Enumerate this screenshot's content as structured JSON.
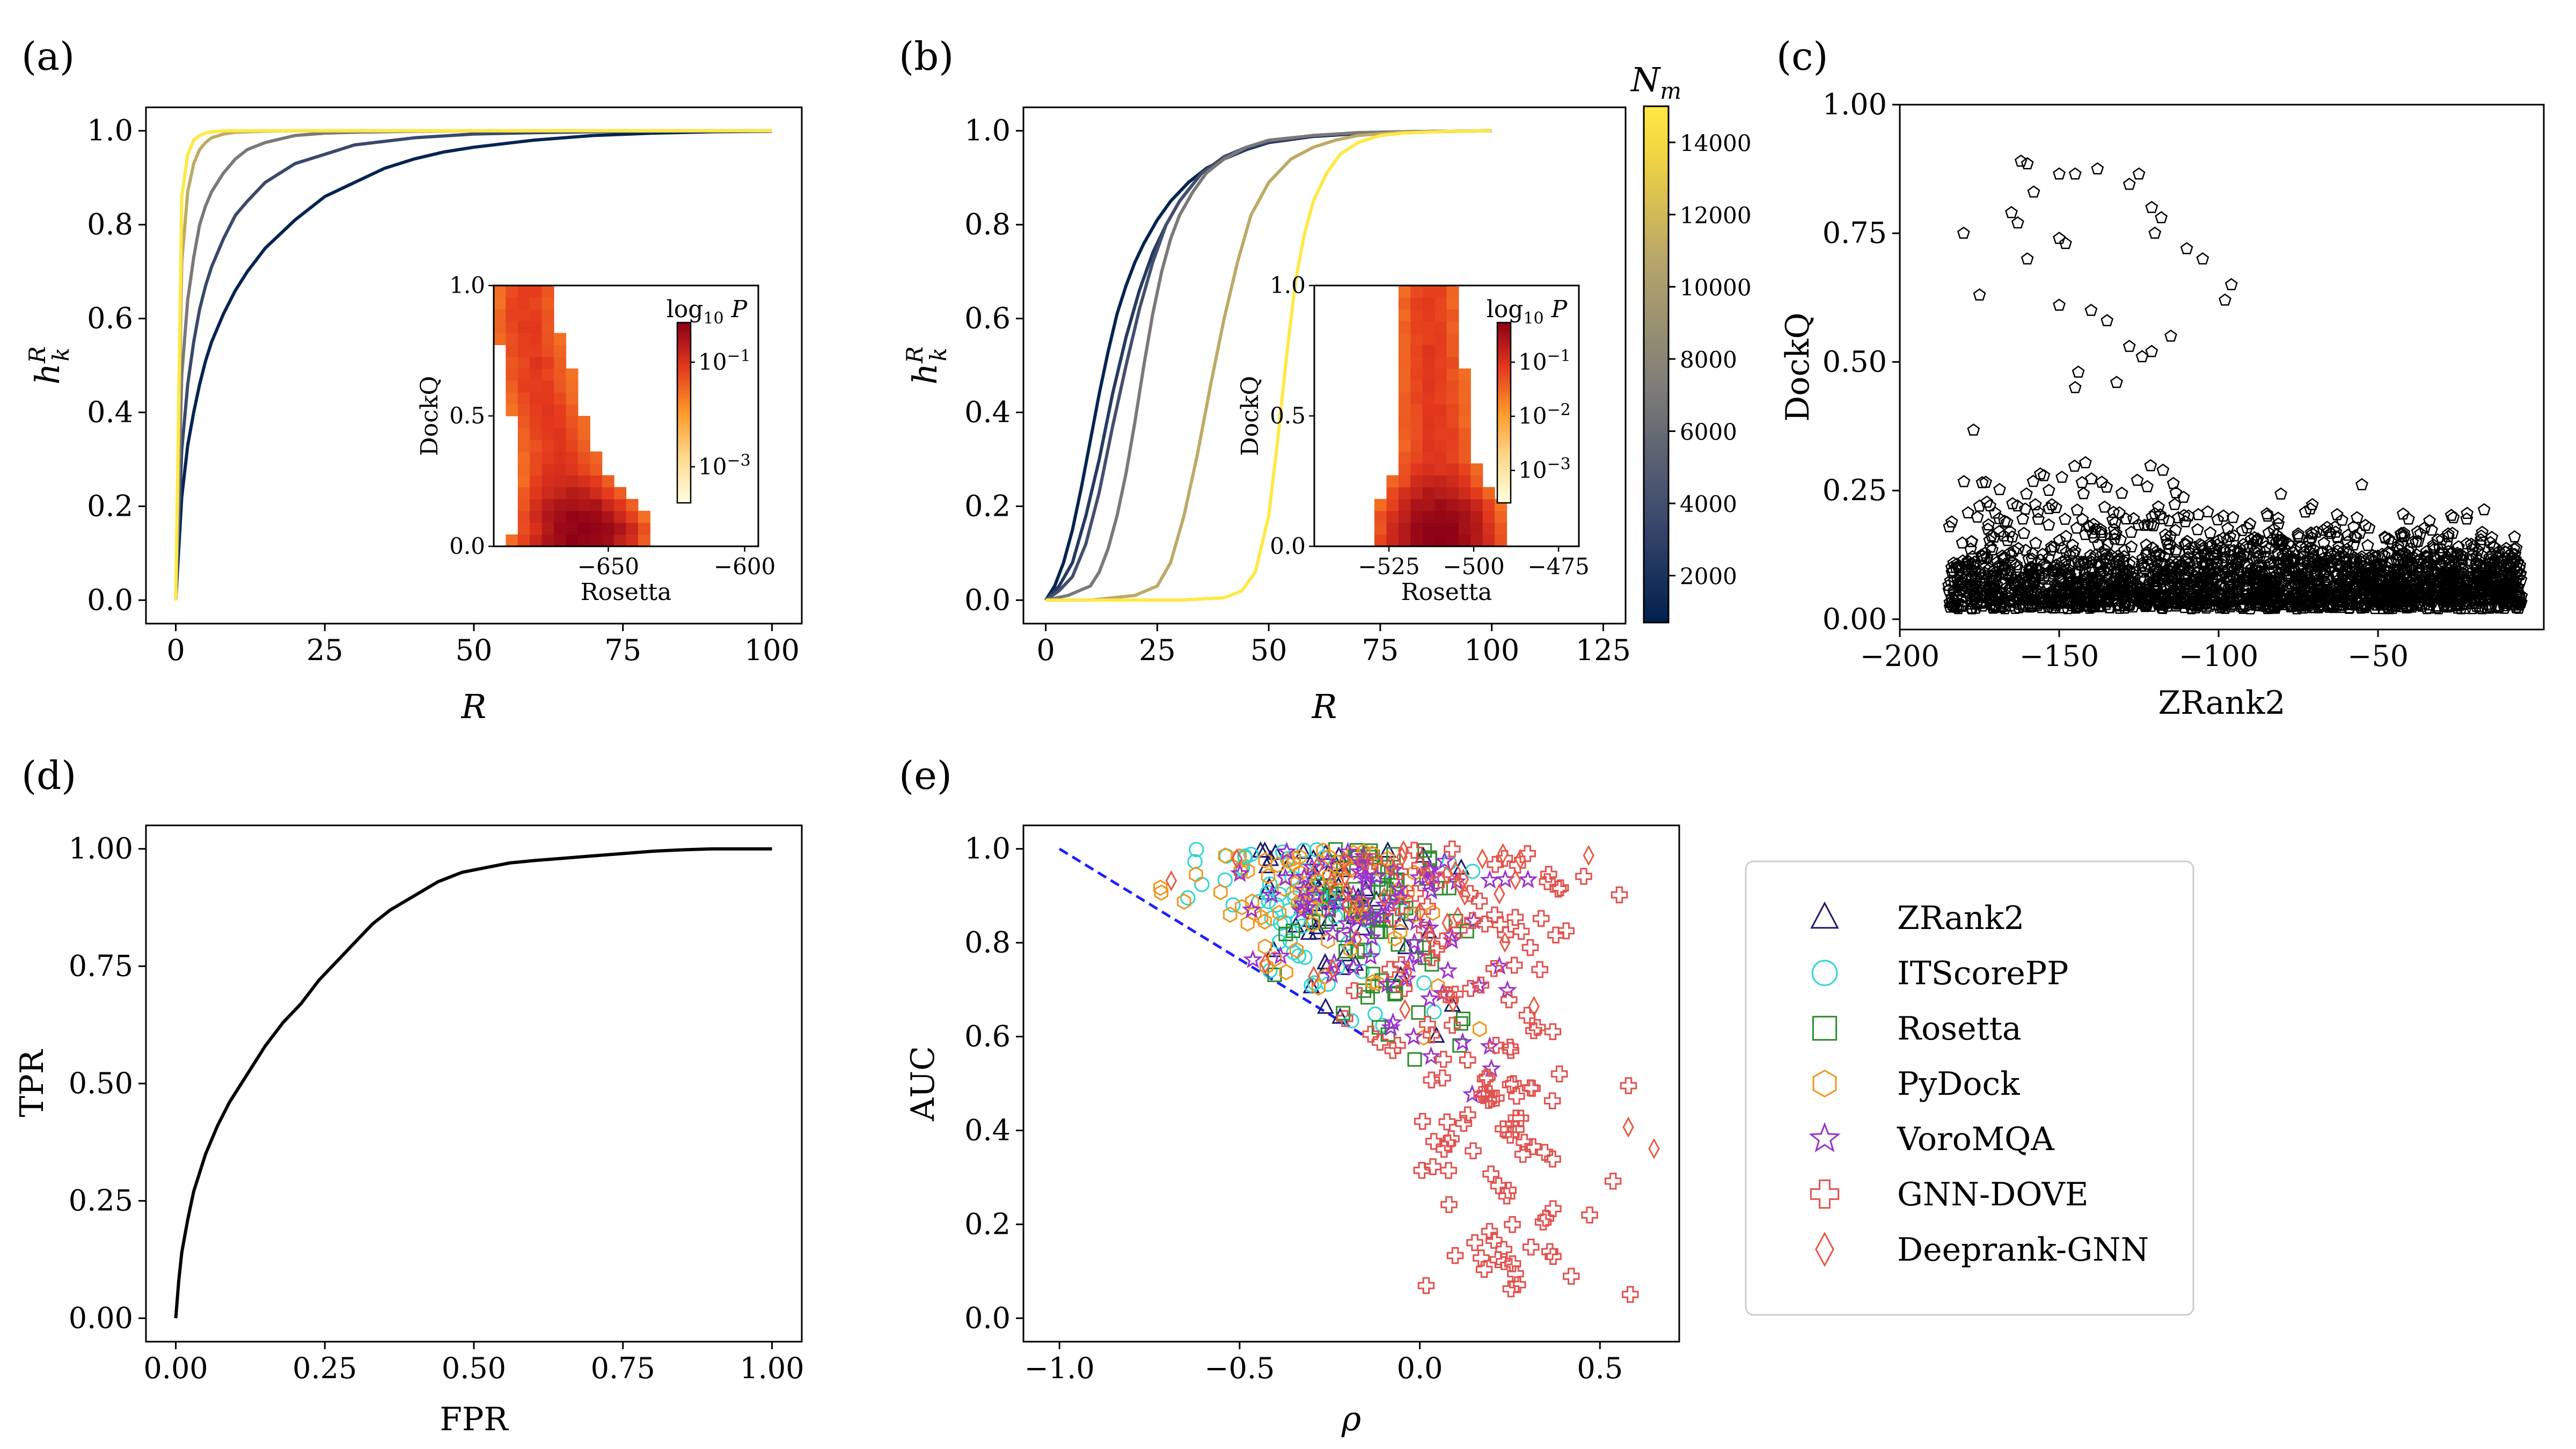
{
  "chart_data": [
    {
      "panel": "(a)",
      "type": "line",
      "xlabel": "R",
      "ylabel": "h_k^R",
      "xlim": [
        -5,
        105
      ],
      "ylim": [
        -0.05,
        1.05
      ],
      "xticks": [
        "0",
        "25",
        "50",
        "75",
        "100"
      ],
      "yticks": [
        "0.0",
        "0.2",
        "0.4",
        "0.6",
        "0.8",
        "1.0"
      ],
      "color_by": "N_m",
      "series": [
        {
          "nm": 1000,
          "x": [
            0,
            1,
            2,
            3,
            4,
            5,
            6,
            8,
            10,
            12,
            15,
            20,
            25,
            30,
            35,
            40,
            45,
            50,
            60,
            70,
            80,
            90,
            100
          ],
          "y": [
            0.0,
            0.22,
            0.33,
            0.4,
            0.46,
            0.51,
            0.55,
            0.61,
            0.66,
            0.7,
            0.75,
            0.81,
            0.86,
            0.89,
            0.92,
            0.94,
            0.955,
            0.965,
            0.98,
            0.99,
            0.995,
            0.998,
            0.999
          ]
        },
        {
          "nm": 3500,
          "x": [
            0,
            1,
            2,
            3,
            4,
            5,
            6,
            8,
            10,
            12,
            15,
            20,
            25,
            30,
            40,
            50,
            60,
            70,
            80,
            100
          ],
          "y": [
            0.0,
            0.32,
            0.46,
            0.55,
            0.62,
            0.67,
            0.71,
            0.77,
            0.82,
            0.85,
            0.89,
            0.93,
            0.95,
            0.97,
            0.985,
            0.993,
            0.996,
            0.998,
            0.999,
            1.0
          ]
        },
        {
          "nm": 7000,
          "x": [
            0,
            1,
            2,
            3,
            4,
            5,
            6,
            8,
            10,
            12,
            15,
            20,
            25,
            30,
            40,
            50,
            100
          ],
          "y": [
            0.0,
            0.48,
            0.64,
            0.73,
            0.8,
            0.84,
            0.87,
            0.91,
            0.94,
            0.96,
            0.975,
            0.99,
            0.995,
            0.997,
            0.999,
            1.0,
            1.0
          ]
        },
        {
          "nm": 11000,
          "x": [
            0,
            1,
            2,
            3,
            4,
            5,
            6,
            8,
            10,
            15,
            20,
            100
          ],
          "y": [
            0.0,
            0.72,
            0.87,
            0.93,
            0.96,
            0.975,
            0.985,
            0.993,
            0.997,
            0.999,
            1.0,
            1.0
          ]
        },
        {
          "nm": 15000,
          "x": [
            0,
            1,
            2,
            3,
            4,
            5,
            6,
            8,
            100
          ],
          "y": [
            0.0,
            0.86,
            0.95,
            0.98,
            0.99,
            0.995,
            0.998,
            1.0,
            1.0
          ]
        }
      ],
      "inset": {
        "type": "heatmap",
        "xlabel": "Rosetta",
        "ylabel": "DockQ",
        "xticks": [
          "−650",
          "−600"
        ],
        "yticks": [
          "0.0",
          "0.5",
          "1.0"
        ],
        "colorbar_label": "log10 P",
        "colorbar_ticks": [
          "10−1",
          "10−3"
        ],
        "xlim": [
          -692,
          -595
        ],
        "ylim": [
          0,
          1
        ],
        "peak_x": -660,
        "peak_y": 0.05,
        "ridge": [
          [
            -680,
            0.85
          ],
          [
            -675,
            0.6
          ],
          [
            -668,
            0.35
          ],
          [
            -662,
            0.15
          ],
          [
            -658,
            0.05
          ]
        ]
      }
    },
    {
      "panel": "(b)",
      "type": "line",
      "xlabel": "R",
      "ylabel": "h_k^R",
      "xlim": [
        -5,
        130
      ],
      "ylim": [
        -0.05,
        1.05
      ],
      "xticks": [
        "0",
        "25",
        "50",
        "75",
        "100",
        "125"
      ],
      "yticks": [
        "0.0",
        "0.2",
        "0.4",
        "0.6",
        "0.8",
        "1.0"
      ],
      "color_by": "N_m",
      "series": [
        {
          "nm": 1000,
          "x": [
            0,
            2,
            4,
            6,
            8,
            10,
            12,
            14,
            16,
            18,
            20,
            22,
            25,
            28,
            32,
            36,
            40,
            45,
            50,
            60,
            70,
            80,
            90,
            100
          ],
          "y": [
            0.0,
            0.03,
            0.08,
            0.15,
            0.24,
            0.34,
            0.44,
            0.53,
            0.61,
            0.67,
            0.72,
            0.76,
            0.81,
            0.85,
            0.89,
            0.92,
            0.94,
            0.96,
            0.975,
            0.988,
            0.994,
            0.997,
            0.999,
            1.0
          ]
        },
        {
          "nm": 2500,
          "x": [
            0,
            3,
            6,
            9,
            12,
            15,
            18,
            21,
            24,
            27,
            30,
            35,
            40,
            45,
            50,
            60,
            70,
            80,
            100
          ],
          "y": [
            0.0,
            0.03,
            0.08,
            0.18,
            0.3,
            0.44,
            0.56,
            0.66,
            0.74,
            0.8,
            0.85,
            0.91,
            0.94,
            0.96,
            0.975,
            0.99,
            0.995,
            0.998,
            1.0
          ]
        },
        {
          "nm": 4000,
          "x": [
            0,
            3,
            6,
            9,
            12,
            15,
            18,
            21,
            24,
            27,
            30,
            35,
            40,
            45,
            50,
            60,
            70,
            80,
            100
          ],
          "y": [
            0.0,
            0.02,
            0.05,
            0.12,
            0.23,
            0.37,
            0.5,
            0.62,
            0.72,
            0.8,
            0.85,
            0.91,
            0.945,
            0.965,
            0.978,
            0.99,
            0.996,
            0.998,
            1.0
          ]
        },
        {
          "nm": 7000,
          "x": [
            0,
            5,
            10,
            12,
            14,
            16,
            18,
            20,
            22,
            24,
            26,
            28,
            30,
            33,
            36,
            40,
            45,
            50,
            60,
            70,
            80,
            100
          ],
          "y": [
            0.0,
            0.01,
            0.03,
            0.06,
            0.11,
            0.18,
            0.27,
            0.38,
            0.5,
            0.61,
            0.7,
            0.77,
            0.82,
            0.87,
            0.91,
            0.94,
            0.965,
            0.98,
            0.99,
            0.996,
            0.998,
            1.0
          ]
        },
        {
          "nm": 11000,
          "x": [
            0,
            10,
            20,
            25,
            28,
            31,
            34,
            37,
            40,
            43,
            46,
            50,
            55,
            60,
            65,
            70,
            80,
            100
          ],
          "y": [
            0.0,
            0.0,
            0.01,
            0.03,
            0.08,
            0.18,
            0.31,
            0.46,
            0.6,
            0.72,
            0.82,
            0.89,
            0.94,
            0.965,
            0.98,
            0.99,
            0.997,
            1.0
          ]
        },
        {
          "nm": 15000,
          "x": [
            0,
            20,
            30,
            40,
            44,
            47,
            50,
            52,
            54,
            56,
            58,
            60,
            63,
            66,
            70,
            75,
            80,
            90,
            100
          ],
          "y": [
            0.0,
            0.0,
            0.0,
            0.005,
            0.02,
            0.06,
            0.18,
            0.34,
            0.52,
            0.68,
            0.78,
            0.85,
            0.91,
            0.95,
            0.975,
            0.99,
            0.995,
            0.999,
            1.0
          ]
        }
      ],
      "inset": {
        "type": "heatmap",
        "xlabel": "Rosetta",
        "ylabel": "DockQ",
        "xticks": [
          "−525",
          "−500",
          "−475"
        ],
        "yticks": [
          "0.0",
          "0.5",
          "1.0"
        ],
        "colorbar_label": "log10 P",
        "colorbar_ticks": [
          "10−1",
          "10−2",
          "10−3"
        ],
        "xlim": [
          -547,
          -469
        ],
        "ylim": [
          0,
          1
        ],
        "peak_x": -510,
        "peak_y": 0.06,
        "ridge": [
          [
            -513,
            0.9
          ],
          [
            -512,
            0.6
          ],
          [
            -511,
            0.35
          ],
          [
            -510,
            0.1
          ]
        ]
      },
      "colorbar": {
        "label": "N_m",
        "ticks": [
          "2000",
          "4000",
          "6000",
          "8000",
          "10000",
          "12000",
          "14000"
        ],
        "range": [
          700,
          15000
        ],
        "colors": [
          "#00204d",
          "#3b496c",
          "#7c7b78",
          "#b6a56b",
          "#f0d342",
          "#ffe945"
        ]
      }
    },
    {
      "panel": "(c)",
      "type": "scatter",
      "xlabel": "ZRank2",
      "ylabel": "DockQ",
      "xlim": [
        -200,
        2
      ],
      "ylim": [
        -0.02,
        1.0
      ],
      "xticks": [
        "−200",
        "−150",
        "−100",
        "−50"
      ],
      "yticks": [
        "0.00",
        "0.25",
        "0.50",
        "0.75",
        "1.00"
      ],
      "marker": "pentagon",
      "highlight_points": [
        [
          -162,
          0.89
        ],
        [
          -160,
          0.885
        ],
        [
          -150,
          0.865
        ],
        [
          -145,
          0.865
        ],
        [
          -138,
          0.875
        ],
        [
          -125,
          0.865
        ],
        [
          -128,
          0.845
        ],
        [
          -165,
          0.79
        ],
        [
          -163,
          0.77
        ],
        [
          -158,
          0.83
        ],
        [
          -180,
          0.75
        ],
        [
          -121,
          0.8
        ],
        [
          -118,
          0.78
        ],
        [
          -150,
          0.74
        ],
        [
          -148,
          0.73
        ],
        [
          -160,
          0.7
        ],
        [
          -120,
          0.75
        ],
        [
          -110,
          0.72
        ],
        [
          -105,
          0.7
        ],
        [
          -175,
          0.63
        ],
        [
          -140,
          0.6
        ],
        [
          -135,
          0.58
        ],
        [
          -150,
          0.61
        ],
        [
          -96,
          0.65
        ],
        [
          -98,
          0.62
        ],
        [
          -115,
          0.55
        ],
        [
          -128,
          0.53
        ],
        [
          -124,
          0.51
        ],
        [
          -121,
          0.52
        ],
        [
          -144,
          0.48
        ],
        [
          -132,
          0.46
        ],
        [
          -145,
          0.45
        ]
      ]
    },
    {
      "panel": "(d)",
      "type": "line",
      "xlabel": "FPR",
      "ylabel": "TPR",
      "xlim": [
        -0.05,
        1.05
      ],
      "ylim": [
        -0.05,
        1.05
      ],
      "xticks": [
        "0.00",
        "0.25",
        "0.50",
        "0.75",
        "1.00"
      ],
      "yticks": [
        "0.00",
        "0.25",
        "0.50",
        "0.75",
        "1.00"
      ],
      "x": [
        0.0,
        0.005,
        0.01,
        0.02,
        0.03,
        0.04,
        0.05,
        0.07,
        0.09,
        0.11,
        0.13,
        0.15,
        0.18,
        0.21,
        0.24,
        0.27,
        0.3,
        0.33,
        0.36,
        0.4,
        0.44,
        0.48,
        0.52,
        0.56,
        0.6,
        0.65,
        0.7,
        0.75,
        0.8,
        0.85,
        0.9,
        0.95,
        1.0
      ],
      "y": [
        0.0,
        0.08,
        0.14,
        0.21,
        0.27,
        0.31,
        0.35,
        0.41,
        0.46,
        0.5,
        0.54,
        0.58,
        0.63,
        0.67,
        0.72,
        0.76,
        0.8,
        0.84,
        0.87,
        0.9,
        0.93,
        0.95,
        0.96,
        0.97,
        0.975,
        0.98,
        0.985,
        0.99,
        0.995,
        0.998,
        1.0,
        1.0,
        1.0
      ]
    },
    {
      "panel": "(e)",
      "type": "scatter",
      "xlabel": "ρ",
      "ylabel": "AUC",
      "xlim": [
        -1.1,
        0.72
      ],
      "ylim": [
        -0.05,
        1.05
      ],
      "xticks": [
        "−1.0",
        "−0.5",
        "0.0",
        "0.5"
      ],
      "yticks": [
        "0.0",
        "0.2",
        "0.4",
        "0.6",
        "0.8",
        "1.0"
      ],
      "reference_line": {
        "x": [
          -1.0,
          -0.15
        ],
        "y": [
          1.0,
          0.6
        ],
        "color": "#1f1fff"
      },
      "series": [
        {
          "name": "ZRank2",
          "color": "#1b1b6e",
          "marker": "triangle"
        },
        {
          "name": "ITScorePP",
          "color": "#33d6cf",
          "marker": "circle"
        },
        {
          "name": "Rosetta",
          "color": "#2e8b2e",
          "marker": "square"
        },
        {
          "name": "PyDock",
          "color": "#f0961e",
          "marker": "hexagon"
        },
        {
          "name": "VoroMQA",
          "color": "#9a32cd",
          "marker": "star"
        },
        {
          "name": "GNN-DOVE",
          "color": "#e0524f",
          "marker": "plus"
        },
        {
          "name": "Deeprank-GNN",
          "color": "#e85a43",
          "marker": "diamond"
        }
      ]
    }
  ],
  "panel_labels": [
    "(a)",
    "(b)",
    "(c)",
    "(d)",
    "(e)"
  ],
  "colors": {
    "axis": "#000000",
    "background": "#ffffff"
  }
}
